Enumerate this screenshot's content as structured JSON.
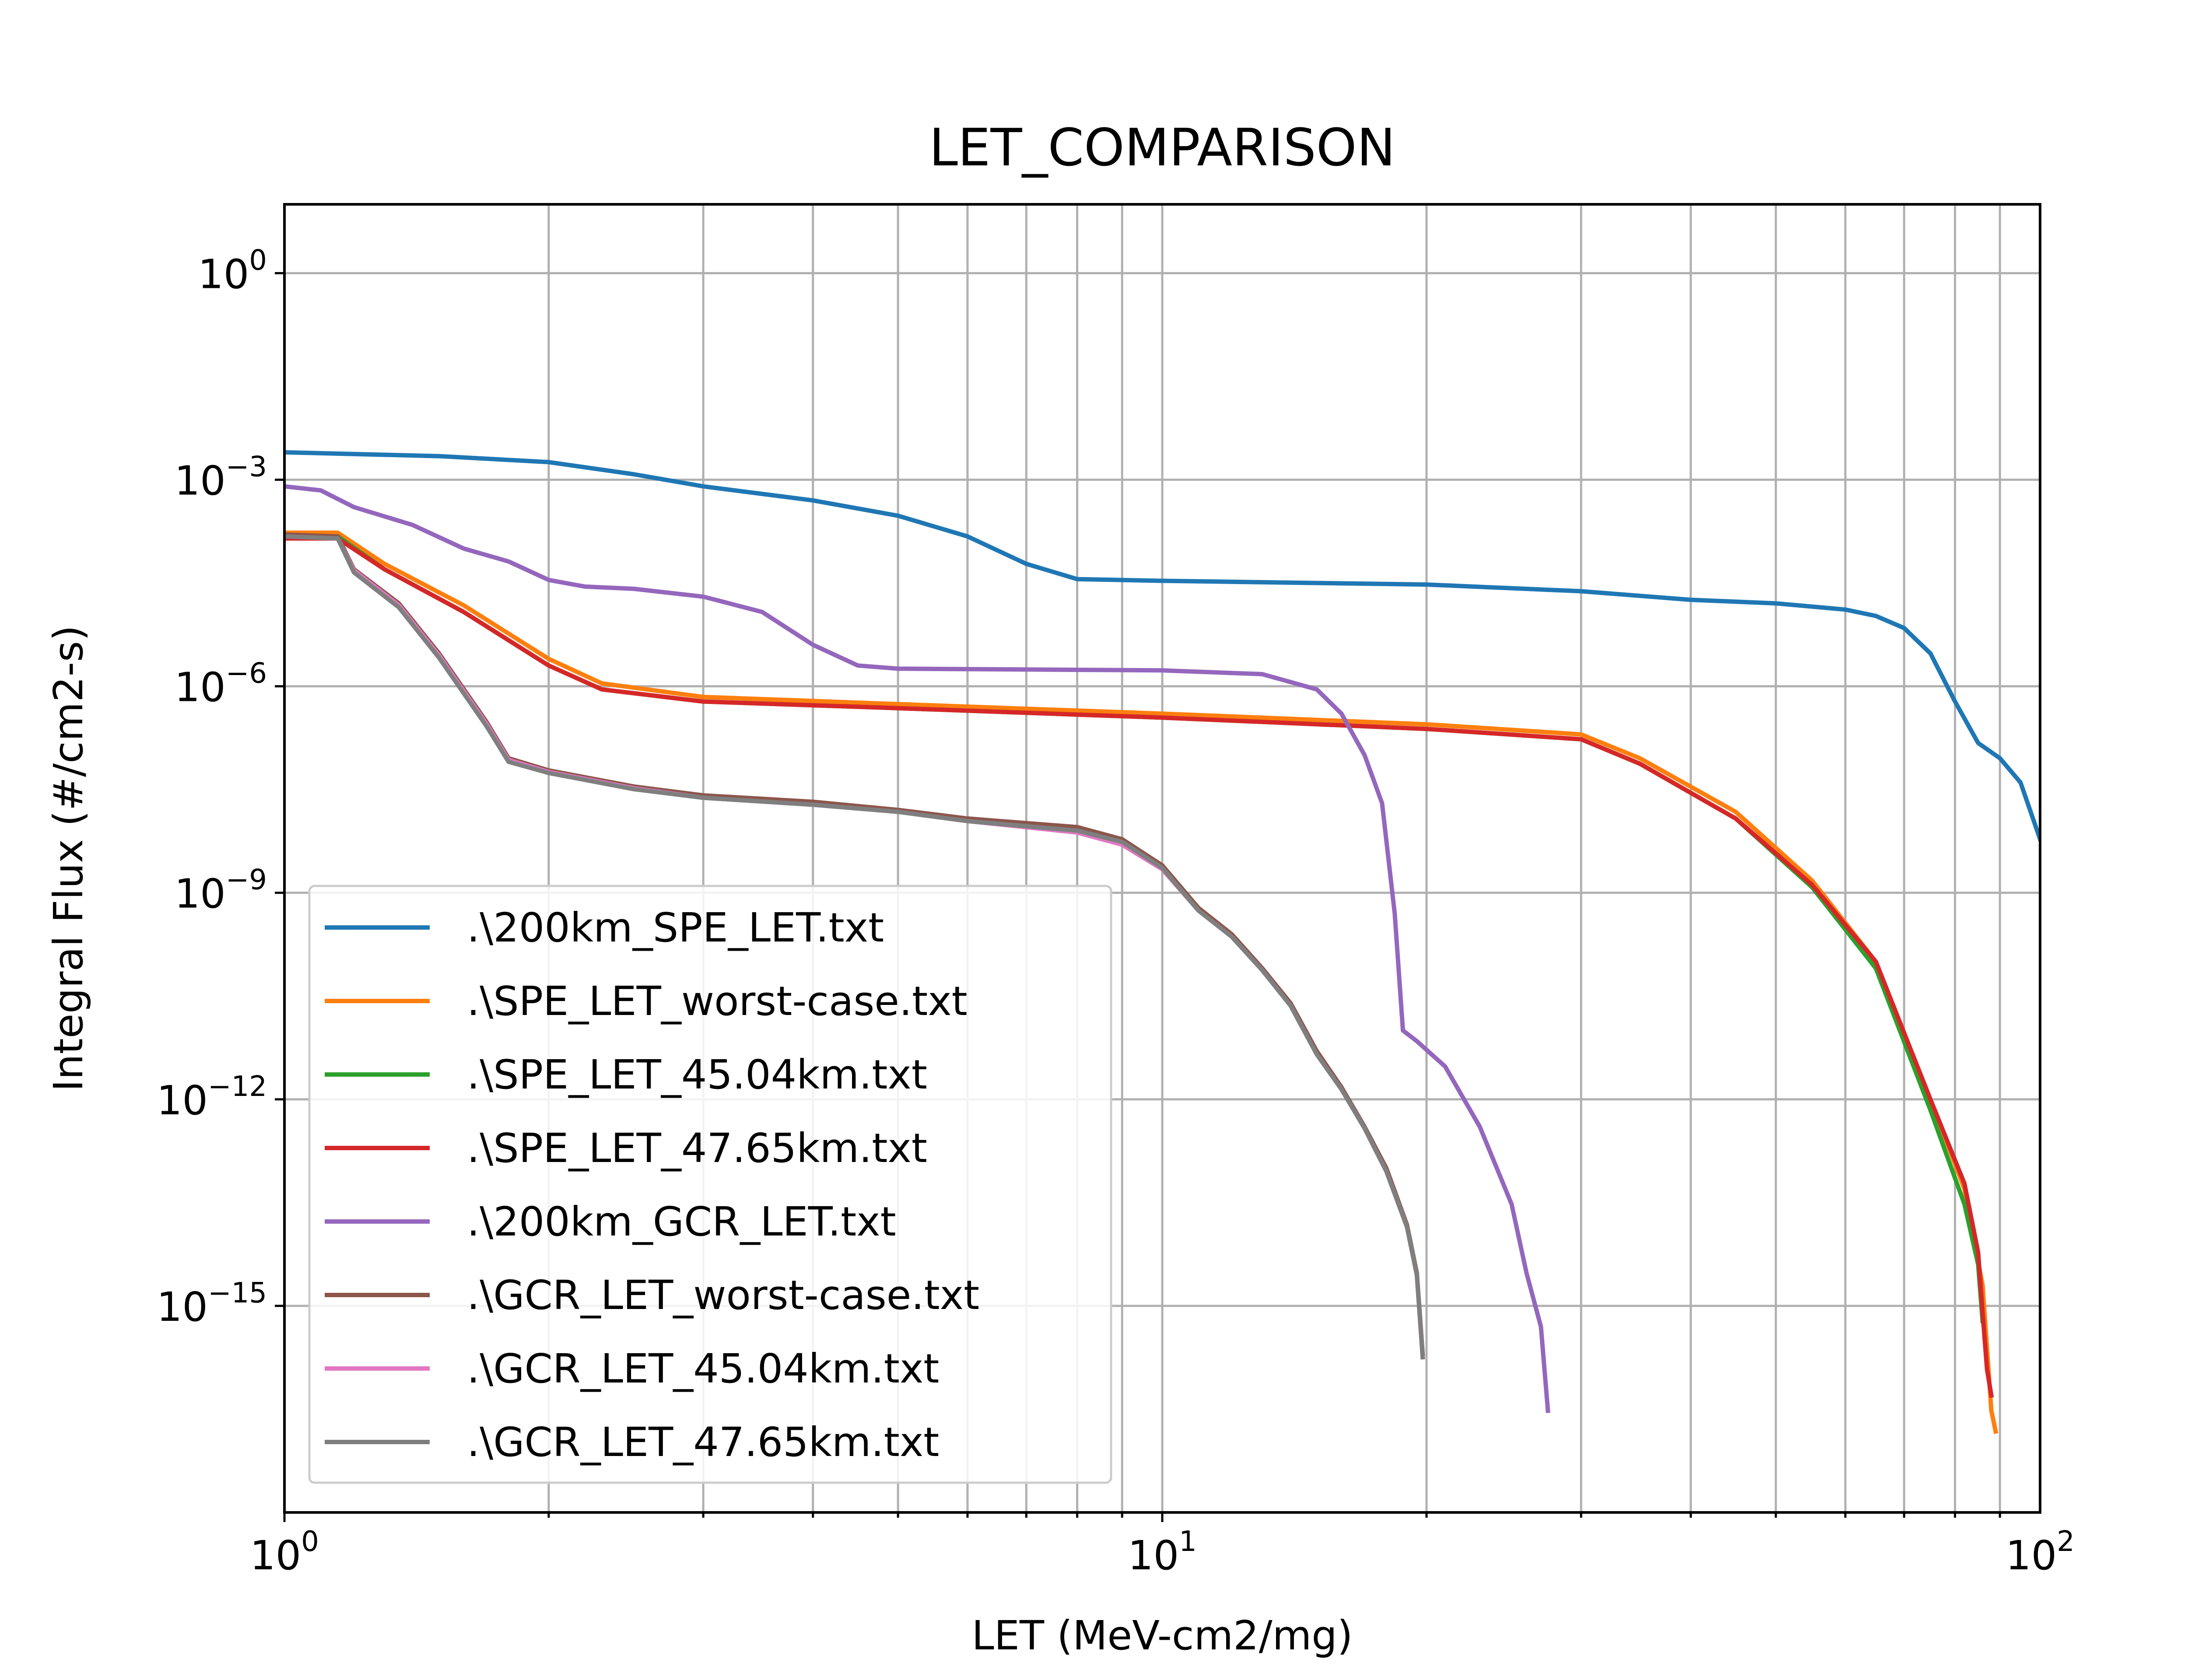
{
  "chart_data": {
    "type": "line",
    "title": "LET_COMPARISON",
    "xlabel": "LET (MeV-cm2/mg)",
    "ylabel": "Integral Flux (#/cm2-s)",
    "xscale": "log",
    "yscale": "log",
    "xlim": [
      1,
      100
    ],
    "ylim": [
      1e-18,
      10.0
    ],
    "grid": true,
    "legend_position": "lower-left",
    "x_ticks": [
      {
        "value": 1,
        "base": "10",
        "exp": "0"
      },
      {
        "value": 10,
        "base": "10",
        "exp": "1"
      },
      {
        "value": 100,
        "base": "10",
        "exp": "2"
      }
    ],
    "y_ticks": [
      {
        "value": 1,
        "base": "10",
        "exp": "0"
      },
      {
        "value": 0.001,
        "base": "10",
        "exp": "−3"
      },
      {
        "value": 1e-06,
        "base": "10",
        "exp": "−6"
      },
      {
        "value": 1e-09,
        "base": "10",
        "exp": "−9"
      },
      {
        "value": 1e-12,
        "base": "10",
        "exp": "−12"
      },
      {
        "value": 1e-15,
        "base": "10",
        "exp": "−15"
      }
    ],
    "series": [
      {
        "name": ".\\200km_SPE_LET.txt",
        "color": "#1f77b4",
        "points": [
          [
            1.0,
            0.0025
          ],
          [
            1.5,
            0.0022
          ],
          [
            2.0,
            0.0018
          ],
          [
            2.5,
            0.0012
          ],
          [
            3.0,
            0.0008
          ],
          [
            4.0,
            0.0005
          ],
          [
            5.0,
            0.0003
          ],
          [
            6.0,
            0.00015
          ],
          [
            7.0,
            6e-05
          ],
          [
            8.0,
            3.6e-05
          ],
          [
            10.0,
            3.4e-05
          ],
          [
            20.0,
            3e-05
          ],
          [
            30.0,
            2.4e-05
          ],
          [
            40.0,
            1.8e-05
          ],
          [
            50.0,
            1.6e-05
          ],
          [
            60.0,
            1.3e-05
          ],
          [
            65.0,
            1.05e-05
          ],
          [
            70.0,
            7e-06
          ],
          [
            75.0,
            3e-06
          ],
          [
            80.0,
            6e-07
          ],
          [
            85.0,
            1.5e-07
          ],
          [
            90.0,
            9e-08
          ],
          [
            95.0,
            4e-08
          ],
          [
            100.0,
            6e-09
          ]
        ]
      },
      {
        "name": ".\\SPE_LET_worst-case.txt",
        "color": "#ff7f0e",
        "points": [
          [
            1.0,
            0.00017
          ],
          [
            1.15,
            0.00017
          ],
          [
            1.3,
            6e-05
          ],
          [
            1.6,
            1.5e-05
          ],
          [
            2.0,
            2.5e-06
          ],
          [
            2.3,
            1.1e-06
          ],
          [
            3.0,
            7e-07
          ],
          [
            5.0,
            5.5e-07
          ],
          [
            10.0,
            4e-07
          ],
          [
            20.0,
            2.8e-07
          ],
          [
            30.0,
            2e-07
          ],
          [
            35.0,
            9e-08
          ],
          [
            45.0,
            1.5e-08
          ],
          [
            55.0,
            1.5e-09
          ],
          [
            65.0,
            1e-10
          ],
          [
            75.0,
            1e-12
          ],
          [
            82.0,
            5e-14
          ],
          [
            86.0,
            2e-15
          ],
          [
            88.0,
            3e-17
          ],
          [
            89.0,
            1.5e-17
          ]
        ]
      },
      {
        "name": ".\\SPE_LET_45.04km.txt",
        "color": "#2ca02c",
        "points": [
          [
            1.0,
            0.00015
          ],
          [
            1.15,
            0.00015
          ],
          [
            1.3,
            5e-05
          ],
          [
            1.6,
            1.2e-05
          ],
          [
            2.0,
            2e-06
          ],
          [
            2.3,
            9e-07
          ],
          [
            3.0,
            6e-07
          ],
          [
            5.0,
            4.8e-07
          ],
          [
            10.0,
            3.5e-07
          ],
          [
            20.0,
            2.4e-07
          ],
          [
            30.0,
            1.7e-07
          ],
          [
            35.0,
            7.5e-08
          ],
          [
            45.0,
            1.2e-08
          ],
          [
            55.0,
            1.2e-09
          ],
          [
            65.0,
            8e-11
          ],
          [
            75.0,
            7e-13
          ],
          [
            82.0,
            3e-14
          ],
          [
            85.0,
            4e-15
          ],
          [
            86.0,
            6e-16
          ]
        ]
      },
      {
        "name": ".\\SPE_LET_47.65km.txt",
        "color": "#d62728",
        "points": [
          [
            1.0,
            0.00014
          ],
          [
            1.15,
            0.00014
          ],
          [
            1.3,
            5e-05
          ],
          [
            1.6,
            1.2e-05
          ],
          [
            2.0,
            2e-06
          ],
          [
            2.3,
            9e-07
          ],
          [
            3.0,
            6e-07
          ],
          [
            5.0,
            4.8e-07
          ],
          [
            10.0,
            3.5e-07
          ],
          [
            20.0,
            2.4e-07
          ],
          [
            30.0,
            1.7e-07
          ],
          [
            35.0,
            7.5e-08
          ],
          [
            45.0,
            1.2e-08
          ],
          [
            55.0,
            1.3e-09
          ],
          [
            65.0,
            1e-10
          ],
          [
            75.0,
            1e-12
          ],
          [
            82.0,
            6e-14
          ],
          [
            85.0,
            6e-15
          ],
          [
            86.0,
            8e-16
          ],
          [
            87.0,
            1.2e-16
          ],
          [
            88.0,
            5e-17
          ]
        ]
      },
      {
        "name": ".\\200km_GCR_LET.txt",
        "color": "#9467bd",
        "points": [
          [
            1.0,
            0.0008
          ],
          [
            1.1,
            0.0007
          ],
          [
            1.2,
            0.0004
          ],
          [
            1.4,
            0.00022
          ],
          [
            1.6,
            0.0001
          ],
          [
            1.8,
            6.5e-05
          ],
          [
            2.0,
            3.5e-05
          ],
          [
            2.2,
            2.8e-05
          ],
          [
            2.5,
            2.6e-05
          ],
          [
            3.0,
            2e-05
          ],
          [
            3.5,
            1.2e-05
          ],
          [
            4.0,
            4e-06
          ],
          [
            4.5,
            2e-06
          ],
          [
            5.0,
            1.8e-06
          ],
          [
            10.0,
            1.7e-06
          ],
          [
            13.0,
            1.5e-06
          ],
          [
            15.0,
            9e-07
          ],
          [
            16.0,
            4e-07
          ],
          [
            17.0,
            1e-07
          ],
          [
            17.8,
            2e-08
          ],
          [
            18.4,
            5e-10
          ],
          [
            18.8,
            1e-11
          ],
          [
            19.5,
            7e-12
          ],
          [
            21.0,
            3e-12
          ],
          [
            23.0,
            4e-13
          ],
          [
            25.0,
            3e-14
          ],
          [
            26.0,
            3e-15
          ],
          [
            27.0,
            5e-16
          ],
          [
            27.5,
            3e-17
          ]
        ]
      },
      {
        "name": ".\\GCR_LET_worst-case.txt",
        "color": "#8c564b",
        "points": [
          [
            1.0,
            0.00016
          ],
          [
            1.15,
            0.00015
          ],
          [
            1.2,
            5e-05
          ],
          [
            1.35,
            1.6e-05
          ],
          [
            1.5,
            3e-06
          ],
          [
            1.7,
            3e-07
          ],
          [
            1.8,
            9e-08
          ],
          [
            2.0,
            6e-08
          ],
          [
            2.5,
            3.5e-08
          ],
          [
            3.0,
            2.6e-08
          ],
          [
            4.0,
            2.1e-08
          ],
          [
            5.0,
            1.6e-08
          ],
          [
            6.0,
            1.2e-08
          ],
          [
            8.0,
            9e-09
          ],
          [
            9.0,
            6e-09
          ],
          [
            10.0,
            2.5e-09
          ],
          [
            11.0,
            6e-10
          ],
          [
            12.0,
            2.5e-10
          ],
          [
            13.0,
            8e-11
          ],
          [
            14.0,
            2.5e-11
          ],
          [
            15.0,
            5e-12
          ],
          [
            16.0,
            1.5e-12
          ],
          [
            17.0,
            4e-13
          ],
          [
            18.0,
            1e-13
          ],
          [
            19.0,
            1.5e-14
          ],
          [
            19.5,
            3e-15
          ],
          [
            19.8,
            2e-16
          ]
        ]
      },
      {
        "name": ".\\GCR_LET_45.04km.txt",
        "color": "#e377c2",
        "points": [
          [
            1.0,
            0.00015
          ],
          [
            1.15,
            0.00014
          ],
          [
            1.2,
            4.8e-05
          ],
          [
            1.35,
            1.5e-05
          ],
          [
            1.5,
            2.8e-06
          ],
          [
            1.7,
            2.8e-07
          ],
          [
            1.8,
            8.5e-08
          ],
          [
            2.0,
            5.7e-08
          ],
          [
            2.5,
            3.3e-08
          ],
          [
            3.0,
            2.4e-08
          ],
          [
            4.0,
            1.9e-08
          ],
          [
            5.0,
            1.5e-08
          ],
          [
            6.0,
            1.1e-08
          ],
          [
            8.0,
            7.5e-09
          ],
          [
            9.0,
            5e-09
          ],
          [
            10.0,
            2.2e-09
          ],
          [
            11.0,
            5.5e-10
          ],
          [
            12.0,
            2.3e-10
          ],
          [
            13.0,
            7.5e-11
          ],
          [
            14.0,
            2.3e-11
          ],
          [
            15.0,
            4.5e-12
          ],
          [
            16.0,
            1.4e-12
          ],
          [
            17.0,
            3.8e-13
          ],
          [
            18.0,
            9e-14
          ],
          [
            19.0,
            1.4e-14
          ],
          [
            19.5,
            2.8e-15
          ],
          [
            19.8,
            1.8e-16
          ]
        ]
      },
      {
        "name": ".\\GCR_LET_47.65km.txt",
        "color": "#7f7f7f",
        "points": [
          [
            1.0,
            0.00015
          ],
          [
            1.15,
            0.00014
          ],
          [
            1.2,
            4.5e-05
          ],
          [
            1.35,
            1.4e-05
          ],
          [
            1.5,
            2.6e-06
          ],
          [
            1.7,
            2.6e-07
          ],
          [
            1.8,
            8e-08
          ],
          [
            2.0,
            5.5e-08
          ],
          [
            2.5,
            3.2e-08
          ],
          [
            3.0,
            2.4e-08
          ],
          [
            4.0,
            1.9e-08
          ],
          [
            5.0,
            1.5e-08
          ],
          [
            6.0,
            1.1e-08
          ],
          [
            8.0,
            8e-09
          ],
          [
            9.0,
            5.5e-09
          ],
          [
            10.0,
            2.3e-09
          ],
          [
            11.0,
            5.5e-10
          ],
          [
            12.0,
            2.3e-10
          ],
          [
            13.0,
            7.5e-11
          ],
          [
            14.0,
            2.3e-11
          ],
          [
            15.0,
            4.5e-12
          ],
          [
            16.0,
            1.4e-12
          ],
          [
            17.0,
            3.8e-13
          ],
          [
            18.0,
            9e-14
          ],
          [
            19.0,
            1.4e-14
          ],
          [
            19.5,
            2.8e-15
          ],
          [
            19.8,
            1.8e-16
          ]
        ]
      }
    ]
  }
}
